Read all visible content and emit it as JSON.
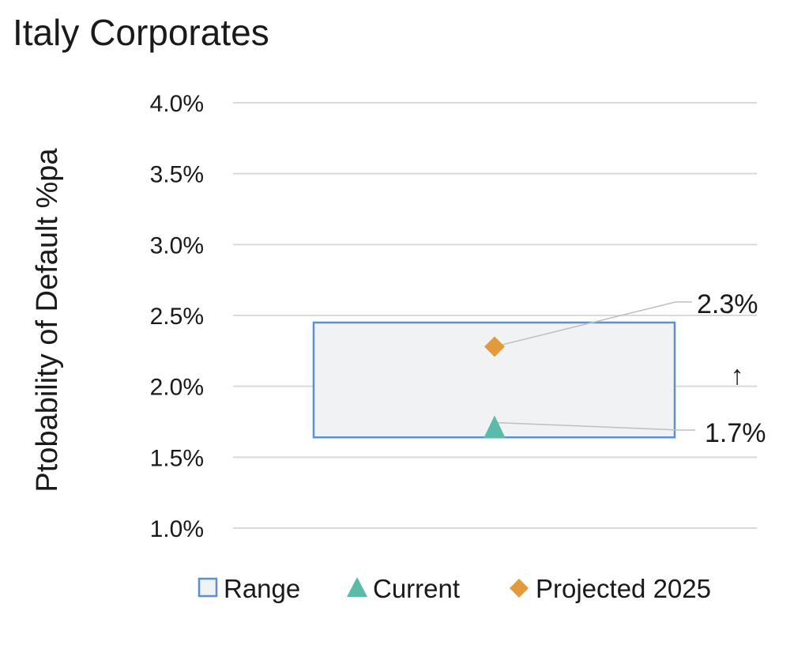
{
  "title": "Italy Corporates",
  "chart_data": {
    "type": "scatter",
    "title": "Italy Corporates",
    "ylabel": "Ptobability of Default %pa",
    "xlabel": "",
    "ylim": [
      1.0,
      4.0
    ],
    "yticks": [
      "4.0%",
      "3.5%",
      "3.0%",
      "2.5%",
      "2.0%",
      "1.5%",
      "1.0%"
    ],
    "ytick_values": [
      4.0,
      3.5,
      3.0,
      2.5,
      2.0,
      1.5,
      1.0
    ],
    "grid": true,
    "legend_position": "bottom",
    "range": {
      "name": "Range",
      "low": 1.64,
      "high": 2.45
    },
    "series": [
      {
        "name": "Current",
        "value": 1.7,
        "label": "1.7%",
        "marker": "triangle",
        "color": "#5BBBA9"
      },
      {
        "name": "Projected 2025",
        "value": 2.28,
        "label": "2.3%",
        "marker": "diamond",
        "color": "#E39A3C"
      }
    ],
    "annotation": "↑",
    "colors": {
      "range_fill": "#F1F2F3",
      "range_stroke": "#5B8FD6",
      "grid": "#D9D9D9",
      "leader": "#BFBFBF"
    }
  }
}
